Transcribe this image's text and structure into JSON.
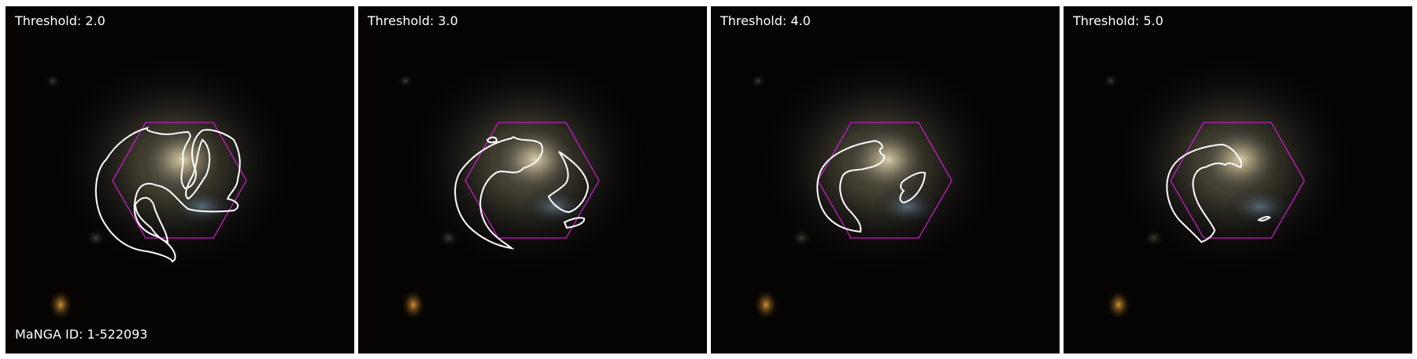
{
  "panels": [
    {
      "threshold_label": "Threshold: 2.0",
      "id_label": "MaNGA ID: 1-522093"
    },
    {
      "threshold_label": "Threshold: 3.0"
    },
    {
      "threshold_label": "Threshold: 4.0"
    },
    {
      "threshold_label": "Threshold: 5.0"
    }
  ],
  "colors": {
    "background": "#050403",
    "contour": "#ffffff",
    "hexagon": "#c020c0",
    "galaxy_core": "#d8cfa8",
    "galaxy_arm": "#6c8fb0",
    "side_star": "#c9872a"
  }
}
